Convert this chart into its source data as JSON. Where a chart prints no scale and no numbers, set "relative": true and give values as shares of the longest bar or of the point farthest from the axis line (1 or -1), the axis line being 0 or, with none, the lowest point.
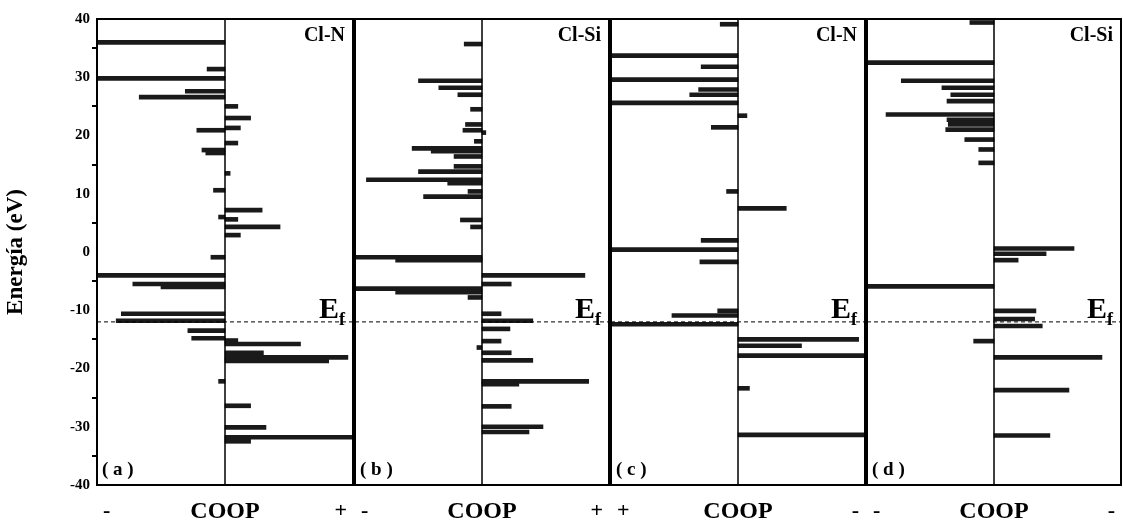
{
  "chart_data": [
    {
      "type": "bar",
      "orientation": "horizontal",
      "relative": true,
      "title": "Cl-N",
      "xlabel": "COOP",
      "ylabel": "Energía (eV)",
      "tick_labels": "y",
      "ylim": [
        -40,
        40
      ],
      "yticks": [
        -40,
        -30,
        -20,
        -10,
        0,
        10,
        20,
        30,
        40
      ],
      "annotations": [
        "( a )",
        "-",
        "+"
      ],
      "ref_lines": [
        {
          "axis": "y",
          "value": -12,
          "label": "E$_{f}$",
          "line_style": "dashed"
        }
      ],
      "x": [
        36,
        31.4,
        29.8,
        27.6,
        26.6,
        25,
        23,
        21.3,
        20.9,
        18.7,
        17.5,
        17,
        13.5,
        10.6,
        7.2,
        6,
        5.6,
        4.3,
        2.9,
        -0.9,
        -4,
        -5.5,
        -6,
        -10.6,
        -11.8,
        -13.5,
        -14.8,
        -15.2,
        -15.8,
        -17.3,
        -18.1,
        -18.7,
        -22.2,
        -26.4,
        -30.1,
        -31.8,
        -32.5
      ],
      "series": [
        {
          "color": "#1a1a1a",
          "values": [
            -1.0,
            -0.14,
            -1.0,
            -0.31,
            -0.67,
            0.1,
            0.2,
            0.12,
            -0.22,
            0.1,
            -0.18,
            -0.15,
            0.04,
            -0.09,
            0.29,
            -0.05,
            0.1,
            0.43,
            0.12,
            -0.11,
            -1.0,
            -0.72,
            -0.5,
            -0.81,
            -0.85,
            -0.29,
            -0.26,
            0.1,
            0.59,
            0.3,
            0.96,
            0.81,
            -0.05,
            0.2,
            0.32,
            1.0,
            0.2
          ]
        }
      ]
    },
    {
      "type": "bar",
      "orientation": "horizontal",
      "relative": true,
      "title": "Cl-Si",
      "xlabel": "COOP",
      "tick_labels": false,
      "ylim": [
        -40,
        40
      ],
      "yticks": [
        -40,
        -30,
        -20,
        -10,
        0,
        10,
        20,
        30,
        40
      ],
      "annotations": [
        "( b )",
        "-",
        "+"
      ],
      "ref_lines": [
        {
          "axis": "y",
          "value": -12,
          "label": "E$_{f}$",
          "line_style": "dashed"
        }
      ],
      "x": [
        35.7,
        29.4,
        28.2,
        27,
        24.5,
        21.9,
        20.9,
        20.5,
        19,
        17.8,
        17.3,
        16.4,
        14.7,
        13.8,
        12.4,
        11.8,
        10.4,
        9.5,
        5.5,
        4.3,
        -0.9,
        -1.4,
        -4,
        -5.5,
        -6.3,
        -6.9,
        -7.8,
        -10.6,
        -11.8,
        -13.2,
        -15.3,
        -16.4,
        -17.3,
        -18.6,
        -22.2,
        -22.7,
        -26.5,
        -30,
        -30.9
      ],
      "series": [
        {
          "color": "#1a1a1a",
          "values": [
            -0.14,
            -0.5,
            -0.34,
            -0.19,
            -0.09,
            -0.13,
            -0.15,
            0.03,
            -0.06,
            -0.55,
            -0.4,
            -0.22,
            -0.22,
            -0.5,
            -0.91,
            -0.27,
            -0.11,
            -0.46,
            -0.17,
            -0.09,
            -1.0,
            -0.68,
            0.81,
            0.23,
            -1.0,
            -0.68,
            -0.11,
            0.15,
            0.4,
            0.22,
            0.15,
            -0.04,
            0.23,
            0.4,
            0.84,
            0.29,
            0.23,
            0.48,
            0.37
          ]
        }
      ]
    },
    {
      "type": "bar",
      "orientation": "horizontal",
      "relative": true,
      "title": "Cl-N",
      "xlabel": "COOP",
      "tick_labels": false,
      "ylim": [
        -40,
        40
      ],
      "yticks": [
        -40,
        -30,
        -20,
        -10,
        0,
        10,
        20,
        30,
        40
      ],
      "annotations": [
        "( c )",
        "+",
        "-"
      ],
      "ref_lines": [
        {
          "axis": "y",
          "value": -12,
          "label": "E$_{f}$",
          "line_style": "dashed"
        }
      ],
      "x": [
        39.1,
        33.7,
        31.8,
        29.6,
        27.9,
        27,
        25.6,
        23.4,
        21.4,
        10.4,
        7.5,
        2,
        0.4,
        -1.7,
        -10.1,
        -10.9,
        -12.4,
        -15,
        -16.1,
        -17.8,
        -23.4,
        -31.4
      ],
      "series": [
        {
          "color": "#1a1a1a",
          "values": [
            -0.14,
            -1.0,
            -0.29,
            -1.0,
            -0.31,
            -0.38,
            -0.99,
            0.07,
            -0.21,
            -0.09,
            0.38,
            -0.29,
            -1.0,
            -0.3,
            -0.16,
            -0.52,
            -0.99,
            0.95,
            0.5,
            1.0,
            0.09,
            1.0
          ]
        }
      ]
    },
    {
      "type": "bar",
      "orientation": "horizontal",
      "relative": true,
      "title": "Cl-Si",
      "xlabel": "COOP",
      "tick_labels": false,
      "ylim": [
        -40,
        40
      ],
      "yticks": [
        -40,
        -30,
        -20,
        -10,
        0,
        10,
        20,
        30,
        40
      ],
      "annotations": [
        "( d )",
        "-",
        "-"
      ],
      "ref_lines": [
        {
          "axis": "y",
          "value": -12,
          "label": "E$_{f}$",
          "line_style": "dashed"
        }
      ],
      "x": [
        39.4,
        32.5,
        29.4,
        28.2,
        27,
        25.9,
        23.6,
        22.7,
        21.9,
        21,
        19.3,
        17.6,
        15.3,
        0.6,
        -0.3,
        -1.4,
        -5.9,
        -10.1,
        -11.5,
        -12.7,
        -15.3,
        -18.1,
        -23.7,
        -31.5
      ],
      "series": [
        {
          "color": "#1a1a1a",
          "values": [
            -0.19,
            -1.0,
            -0.73,
            -0.41,
            -0.34,
            -0.37,
            -0.85,
            -0.37,
            -0.36,
            -0.38,
            -0.23,
            -0.12,
            -0.12,
            0.63,
            0.41,
            0.19,
            -1.0,
            0.33,
            0.32,
            0.38,
            -0.16,
            0.85,
            0.59,
            0.44
          ]
        }
      ]
    }
  ]
}
